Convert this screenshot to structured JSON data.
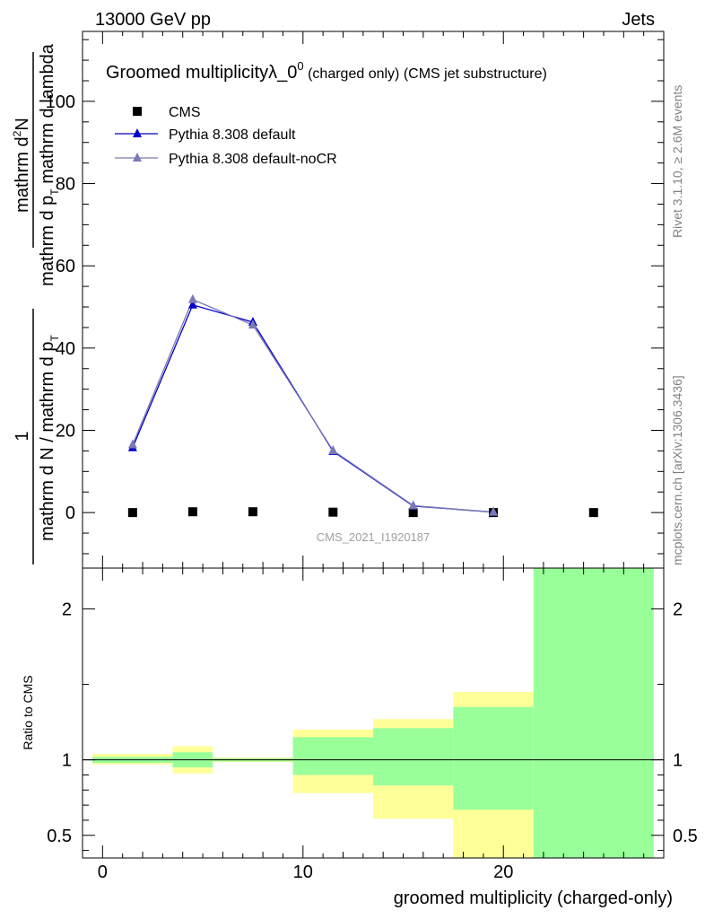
{
  "header": {
    "left": "13000 GeV pp",
    "right": "Jets"
  },
  "side_labels": {
    "rivet": "Rivet 3.1.10, ≥ 2.6M events",
    "mcplots": "mcplots.cern.ch [arXiv:1306.3436]"
  },
  "chart_data": [
    {
      "type": "scatter",
      "panel": "main",
      "title_main": "Groomed multiplicityλ_0",
      "title_sup": "0",
      "title_small": " (charged only) (CMS jet substructure)",
      "analysis_label": "CMS_2021_I1920187",
      "ylabel_a": "mathrm d",
      "ylabel_a_sup": "2",
      "ylabel_b": "N",
      "ylabel_den": "mathrm d p",
      "ylabel_den_sub": "T",
      "ylabel_den2": " mathrm d lambda",
      "ylabel_one": "1",
      "ylabel_norm": "mathrm d N / mathrm d p",
      "ylabel_norm_sub": "T",
      "xlim": [
        -1,
        28
      ],
      "ylim": [
        -13.5,
        117
      ],
      "yticks": [
        0,
        20,
        40,
        60,
        80,
        100
      ],
      "legend_position": "top-left",
      "series": [
        {
          "name": "CMS",
          "color": "#000000",
          "marker": "square",
          "x": [
            1.5,
            4.5,
            7.5,
            11.5,
            15.5,
            19.5,
            24.5
          ],
          "y": [
            0.0,
            0.2,
            0.2,
            0.1,
            0.0,
            0.0,
            0.0
          ]
        },
        {
          "name": "Pythia 8.308 default",
          "color": "#0000cc",
          "marker": "triangle",
          "x": [
            1.5,
            4.5,
            7.5,
            11.5,
            15.5,
            19.5
          ],
          "y": [
            15.8,
            50.5,
            46.3,
            14.9,
            1.6,
            0.1
          ]
        },
        {
          "name": "Pythia 8.308 default-noCR",
          "color": "#7a7ab4",
          "marker": "triangle",
          "x": [
            1.5,
            4.5,
            7.5,
            11.5,
            15.5,
            19.5
          ],
          "y": [
            16.5,
            51.8,
            45.6,
            15.1,
            1.7,
            0.1
          ]
        }
      ]
    },
    {
      "type": "area",
      "panel": "ratio",
      "ylabel": "Ratio to CMS",
      "xlabel": "groomed multiplicity (charged-only)",
      "xlim": [
        -1,
        28
      ],
      "ylim": [
        0.35,
        2.27
      ],
      "xticks": [
        0,
        10,
        20
      ],
      "yticks": [
        0.5,
        1,
        2
      ],
      "reference_line": 1,
      "bands": {
        "inner_color": "#99ff99",
        "outer_color": "#ffff99",
        "bins": [
          {
            "x0": -0.5,
            "x1": 3.5,
            "inner": [
              0.98,
              1.02
            ],
            "outer": [
              0.97,
              1.04
            ]
          },
          {
            "x0": 3.5,
            "x1": 5.5,
            "inner": [
              0.95,
              1.05
            ],
            "outer": [
              0.91,
              1.09
            ]
          },
          {
            "x0": 5.5,
            "x1": 9.5,
            "inner": [
              0.99,
              1.01
            ],
            "outer": [
              0.985,
              1.015
            ]
          },
          {
            "x0": 9.5,
            "x1": 13.5,
            "inner": [
              0.9,
              1.15
            ],
            "outer": [
              0.78,
              1.2
            ]
          },
          {
            "x0": 13.5,
            "x1": 17.5,
            "inner": [
              0.83,
              1.21
            ],
            "outer": [
              0.61,
              1.27
            ]
          },
          {
            "x0": 17.5,
            "x1": 21.5,
            "inner": [
              0.67,
              1.35
            ],
            "outer": [
              0.35,
              1.45
            ]
          },
          {
            "x0": 21.5,
            "x1": 27.5,
            "inner": [
              0.35,
              2.27
            ],
            "outer": [
              0.35,
              2.27
            ]
          }
        ]
      }
    }
  ]
}
